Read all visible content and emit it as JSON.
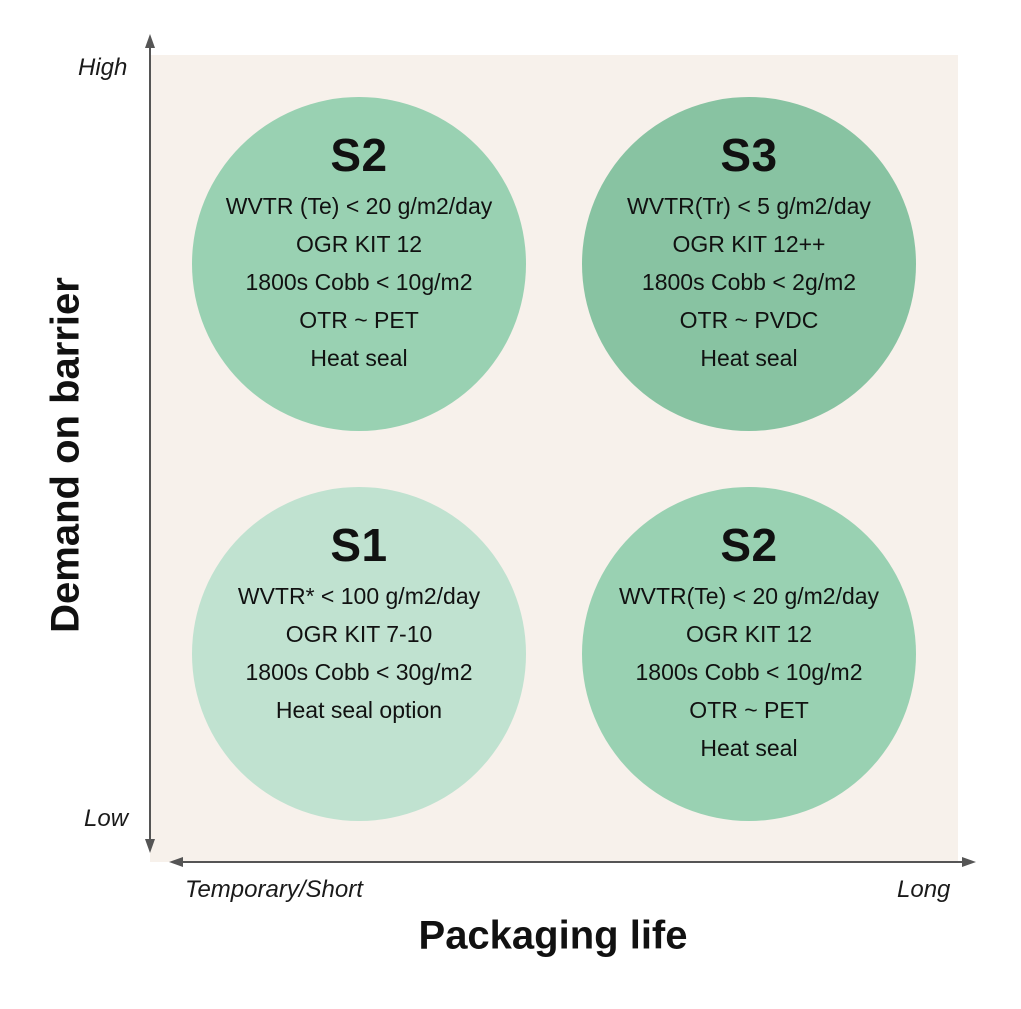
{
  "axes": {
    "y_title": "Demand on barrier",
    "y_high": "High",
    "y_low": "Low",
    "x_title": "Packaging life",
    "x_short": "Temporary/Short",
    "x_long": "Long"
  },
  "quadrants": {
    "top_left": {
      "title": "S2",
      "color": "#99d1b2",
      "lines": [
        "WVTR (Te) < 20 g/m2/day",
        "OGR KIT 12",
        "1800s Cobb  < 10g/m2",
        "OTR ~ PET",
        "Heat seal"
      ]
    },
    "top_right": {
      "title": "S3",
      "color": "#88c3a2",
      "lines": [
        "WVTR(Tr) < 5 g/m2/day",
        "OGR KIT 12++",
        "1800s Cobb  < 2g/m2",
        "OTR ~ PVDC",
        "Heat seal"
      ]
    },
    "bottom_left": {
      "title": "S1",
      "color": "#c0e2d0",
      "lines": [
        "WVTR* < 100 g/m2/day",
        "OGR KIT 7-10",
        "1800s Cobb  < 30g/m2",
        "Heat seal option"
      ]
    },
    "bottom_right": {
      "title": "S2",
      "color": "#99d1b2",
      "lines": [
        "WVTR(Te) < 20 g/m2/day",
        "OGR KIT 12",
        "1800s Cobb < 10g/m2",
        "OTR ~ PET",
        "Heat seal"
      ]
    }
  }
}
